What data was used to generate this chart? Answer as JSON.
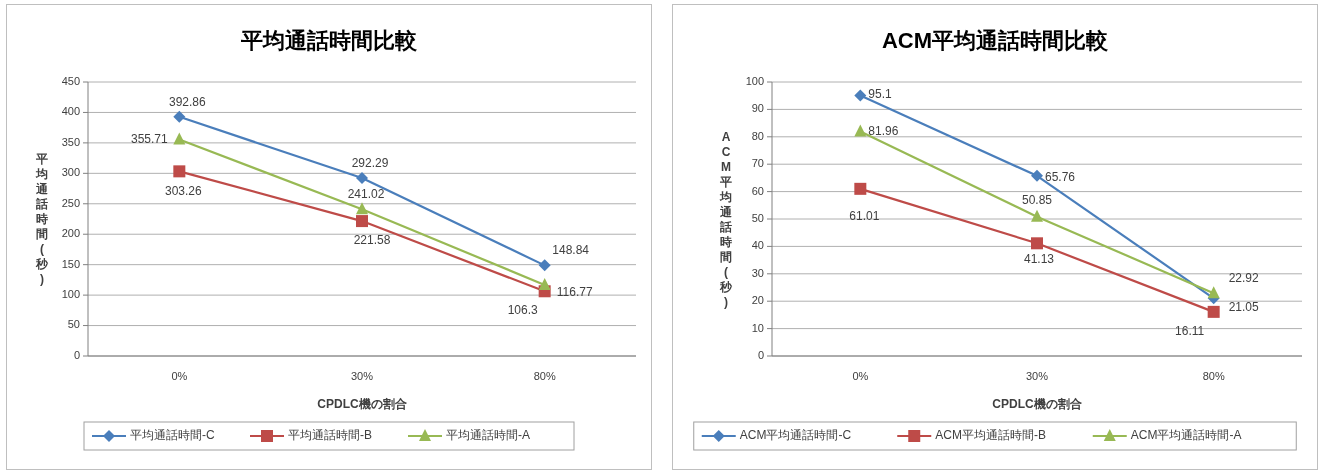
{
  "chart_data": [
    {
      "type": "line",
      "title": "平均通話時間比較",
      "xlabel": "CPDLC機の割合",
      "ylabel": "平均通話時間(秒)",
      "categories": [
        "0%",
        "30%",
        "80%"
      ],
      "ylim": [
        0,
        450
      ],
      "yticks": [
        0,
        50,
        100,
        150,
        200,
        250,
        300,
        350,
        400,
        450
      ],
      "grid": "y",
      "legend": "bottom",
      "data_labels": true,
      "series": [
        {
          "name": "平均通話時間-C",
          "color": "#4a7ebb",
          "marker": "diamond",
          "values": [
            392.86,
            292.29,
            148.84
          ]
        },
        {
          "name": "平均通話時間-B",
          "color": "#be4b48",
          "marker": "square",
          "values": [
            303.26,
            221.58,
            106.3
          ]
        },
        {
          "name": "平均通話時間-A",
          "color": "#98b954",
          "marker": "triangle",
          "values": [
            355.71,
            241.02,
            116.77
          ]
        }
      ]
    },
    {
      "type": "line",
      "title": "ACM平均通話時間比較",
      "xlabel": "CPDLC機の割合",
      "ylabel": "ACM平均通話時間(秒)",
      "categories": [
        "0%",
        "30%",
        "80%"
      ],
      "ylim": [
        0,
        100
      ],
      "yticks": [
        0,
        10,
        20,
        30,
        40,
        50,
        60,
        70,
        80,
        90,
        100
      ],
      "grid": "y",
      "legend": "bottom",
      "data_labels": true,
      "series": [
        {
          "name": "ACM平均通話時間-C",
          "color": "#4a7ebb",
          "marker": "diamond",
          "values": [
            95.1,
            65.76,
            21.05
          ]
        },
        {
          "name": "ACM平均通話時間-B",
          "color": "#be4b48",
          "marker": "square",
          "values": [
            61.01,
            41.13,
            16.11
          ]
        },
        {
          "name": "ACM平均通話時間-A",
          "color": "#98b954",
          "marker": "triangle",
          "values": [
            81.96,
            50.85,
            22.92
          ]
        }
      ]
    }
  ]
}
